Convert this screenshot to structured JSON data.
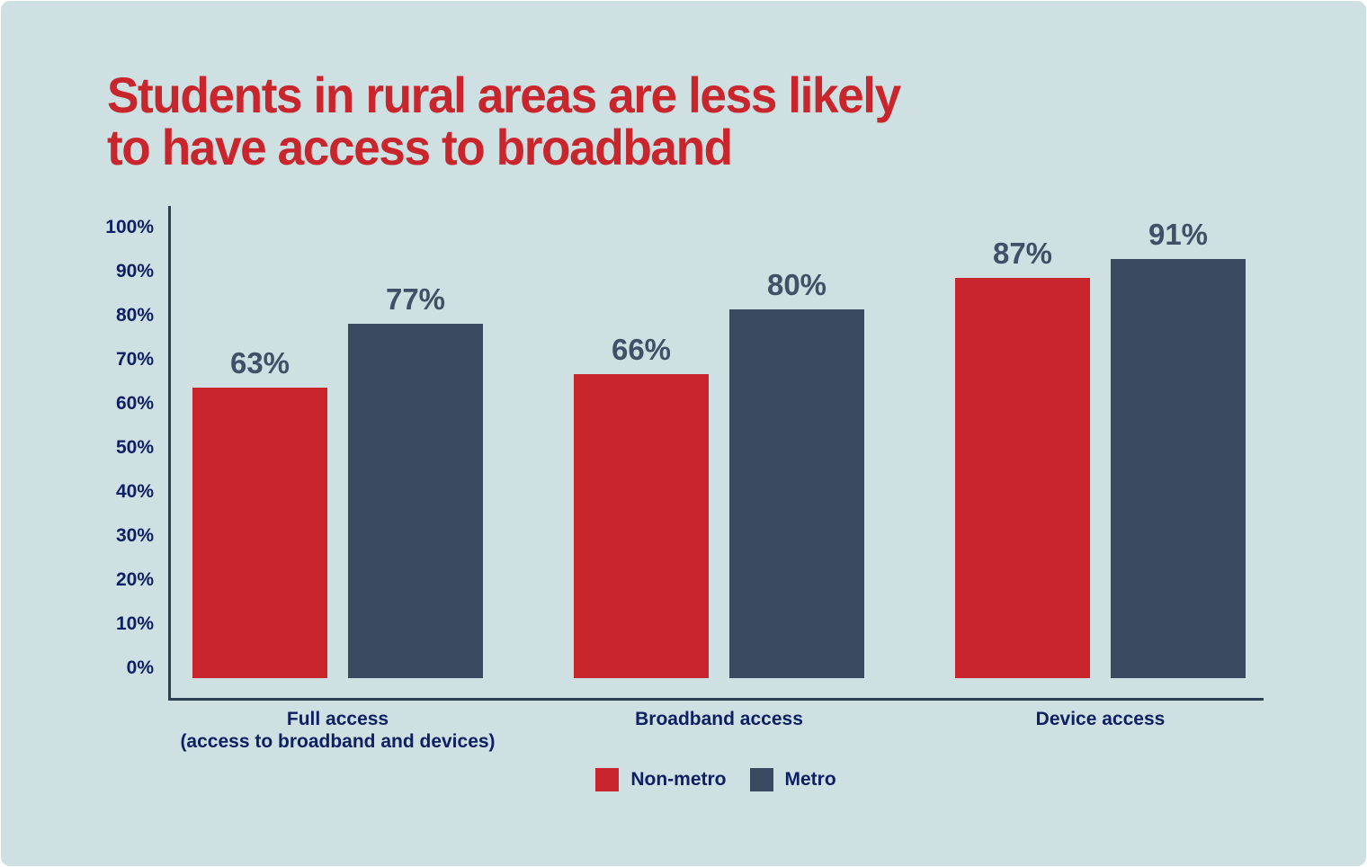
{
  "title": {
    "line1": "Students in rural areas are less likely",
    "line2": "to have access to broadband"
  },
  "colors": {
    "background": "#cfe0e2",
    "title_text": "#c8262c",
    "axis_line": "#2e4053",
    "tick_text": "#0e2063",
    "category_text": "#0e2063",
    "legend_text": "#0e2063",
    "value_label_text": "#3f5067",
    "non_metro": "#c8262c",
    "metro": "#3a4a60"
  },
  "chart_data": {
    "type": "bar",
    "title": "Students in rural areas are less likely to have access to broadband",
    "categories": [
      [
        "Full access",
        "(access to broadband and devices)"
      ],
      [
        "Broadband access"
      ],
      [
        "Device access"
      ]
    ],
    "series": [
      {
        "name": "Non-metro",
        "color": "#c8262c",
        "values": [
          63,
          66,
          87
        ]
      },
      {
        "name": "Metro",
        "color": "#3a4a60",
        "values": [
          77,
          80,
          91
        ]
      }
    ],
    "value_labels": [
      [
        "63%",
        "66%",
        "87%"
      ],
      [
        "77%",
        "80%",
        "91%"
      ]
    ],
    "xlabel": "",
    "ylabel": "",
    "y_axis": {
      "min": 0,
      "max": 100,
      "tick_step": 10,
      "tick_labels_top_to_bottom": [
        "100%",
        "90%",
        "80%",
        "70%",
        "60%",
        "50%",
        "40%",
        "30%",
        "20%",
        "10%",
        "0%"
      ]
    },
    "grid": false,
    "legend": {
      "position": "bottom",
      "entries": [
        "Non-metro",
        "Metro"
      ]
    }
  }
}
